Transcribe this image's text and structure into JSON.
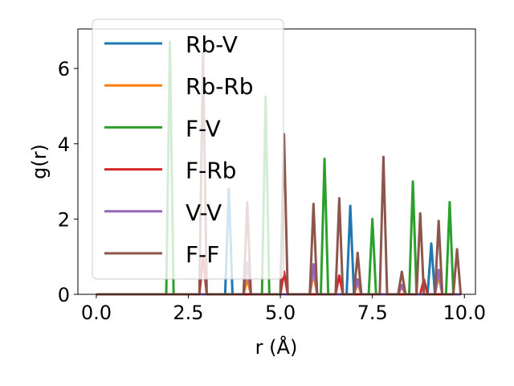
{
  "chart_data": {
    "type": "line",
    "xlabel": "r (Å)",
    "ylabel": "g(r)",
    "xlim": [
      -0.5,
      10.3
    ],
    "ylim": [
      0,
      7.05
    ],
    "xticks": [
      0.0,
      2.5,
      5.0,
      7.5,
      10.0
    ],
    "xtick_labels": [
      "0.0",
      "2.5",
      "5.0",
      "7.5",
      "10.0"
    ],
    "yticks": [
      0,
      2,
      4,
      6
    ],
    "ytick_labels": [
      "0",
      "2",
      "4",
      "6"
    ],
    "grid": false,
    "legend_position": "upper-left",
    "series": [
      {
        "name": "Rb-V",
        "color": "#1f77b4",
        "peaks": [
          [
            3.6,
            2.8
          ],
          [
            6.9,
            2.35
          ],
          [
            9.1,
            1.35
          ]
        ]
      },
      {
        "name": "Rb-Rb",
        "color": "#ff7f0e",
        "peaks": [
          [
            4.1,
            0.4
          ],
          [
            5.9,
            0.55
          ],
          [
            7.1,
            0.3
          ],
          [
            8.3,
            0.2
          ],
          [
            9.3,
            0.5
          ]
        ]
      },
      {
        "name": "F-V",
        "color": "#2ca02c",
        "peaks": [
          [
            2.0,
            6.7
          ],
          [
            4.6,
            5.25
          ],
          [
            6.2,
            3.6
          ],
          [
            7.5,
            2.0
          ],
          [
            8.6,
            3.0
          ],
          [
            9.6,
            2.45
          ]
        ]
      },
      {
        "name": "F-Rb",
        "color": "#d62728",
        "peaks": [
          [
            2.9,
            1.0
          ],
          [
            5.1,
            0.6
          ],
          [
            6.6,
            0.5
          ],
          [
            8.9,
            0.4
          ]
        ]
      },
      {
        "name": "V-V",
        "color": "#9467bd",
        "peaks": [
          [
            4.1,
            0.85
          ],
          [
            5.9,
            0.8
          ],
          [
            7.1,
            0.4
          ],
          [
            8.3,
            0.25
          ],
          [
            9.3,
            0.65
          ]
        ]
      },
      {
        "name": "F-F",
        "color": "#8c564b",
        "peaks": [
          [
            2.9,
            6.45
          ],
          [
            4.1,
            2.45
          ],
          [
            5.1,
            4.25
          ],
          [
            5.9,
            2.4
          ],
          [
            6.6,
            2.55
          ],
          [
            7.1,
            1.1
          ],
          [
            7.8,
            3.65
          ],
          [
            8.3,
            0.6
          ],
          [
            8.8,
            2.15
          ],
          [
            9.3,
            1.95
          ],
          [
            9.8,
            1.2
          ]
        ]
      }
    ],
    "x_grid": {
      "start": 0.0,
      "end": 9.9,
      "step": 0.1
    }
  }
}
